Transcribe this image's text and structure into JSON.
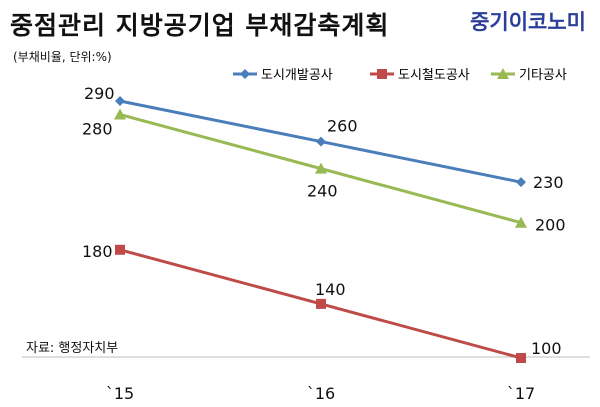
{
  "header": {
    "title": "중점관리 지방공기업 부채감축계획",
    "brand": "중기이코노미",
    "unit_note": "(부채비율, 단위:%)"
  },
  "source_note": "자료: 행정자치부",
  "chart_data": {
    "type": "line",
    "title": "중점관리 지방공기업 부채감축계획",
    "categories": [
      "`15",
      "`16",
      "`17"
    ],
    "series": [
      {
        "name": "도시개발공사",
        "values": [
          290,
          260,
          230
        ],
        "color": "#4a7ebb",
        "marker": "diamond"
      },
      {
        "name": "도시철도공사",
        "values": [
          180,
          140,
          100
        ],
        "color": "#be4b48",
        "marker": "square"
      },
      {
        "name": "기타공사",
        "values": [
          280,
          240,
          200
        ],
        "color": "#98b954",
        "marker": "triangle"
      }
    ],
    "ylim": [
      100,
      290
    ],
    "grid": false,
    "legend_position": "top-right"
  }
}
